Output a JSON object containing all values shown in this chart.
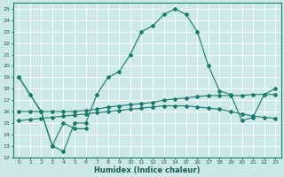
{
  "xlabel": "Humidex (Indice chaleur)",
  "xlim": [
    -0.5,
    23.5
  ],
  "ylim": [
    12,
    25.5
  ],
  "yticks": [
    12,
    13,
    14,
    15,
    16,
    17,
    18,
    19,
    20,
    21,
    22,
    23,
    24,
    25
  ],
  "xticks": [
    0,
    1,
    2,
    3,
    4,
    5,
    6,
    7,
    8,
    9,
    10,
    11,
    12,
    13,
    14,
    15,
    16,
    17,
    18,
    19,
    20,
    21,
    22,
    23
  ],
  "background_color": "#cce8e8",
  "grid_color": "#ffffff",
  "line_color": "#1a7a6e",
  "curve1_x": [
    0,
    1,
    2,
    3,
    4,
    5,
    6,
    7,
    8,
    9,
    10,
    11,
    12,
    13,
    14,
    15,
    16,
    17,
    18,
    19,
    20,
    21,
    22,
    23
  ],
  "curve1_y": [
    19.0,
    17.5,
    16.0,
    13.0,
    12.5,
    15.0,
    15.0,
    17.5,
    19.0,
    19.5,
    21.0,
    23.0,
    23.5,
    24.5,
    25.0,
    24.5,
    23.0,
    20.0,
    17.8,
    17.5,
    15.2,
    15.5,
    17.5,
    18.0
  ],
  "curve2_x": [
    0,
    2,
    3,
    4,
    5,
    6
  ],
  "curve2_y": [
    19.0,
    16.0,
    13.0,
    15.0,
    14.5,
    14.5
  ],
  "curve3_x": [
    0,
    1,
    2,
    3,
    4,
    5,
    6,
    7,
    8,
    9,
    10,
    11,
    12,
    13,
    14,
    15,
    16,
    17,
    18,
    19,
    20,
    21,
    22,
    23
  ],
  "curve3_y": [
    16.0,
    16.0,
    16.0,
    16.0,
    16.0,
    16.0,
    16.1,
    16.2,
    16.4,
    16.5,
    16.6,
    16.7,
    16.8,
    17.0,
    17.1,
    17.2,
    17.3,
    17.4,
    17.4,
    17.4,
    17.4,
    17.5,
    17.5,
    17.5
  ],
  "curve4_x": [
    0,
    1,
    2,
    3,
    4,
    5,
    6,
    7,
    8,
    9,
    10,
    11,
    12,
    13,
    14,
    15,
    16,
    17,
    18,
    19,
    20,
    21,
    22,
    23
  ],
  "curve4_y": [
    15.2,
    15.3,
    15.4,
    15.5,
    15.6,
    15.7,
    15.8,
    15.9,
    16.0,
    16.1,
    16.2,
    16.3,
    16.4,
    16.5,
    16.5,
    16.5,
    16.4,
    16.3,
    16.2,
    16.0,
    15.8,
    15.6,
    15.5,
    15.4
  ]
}
